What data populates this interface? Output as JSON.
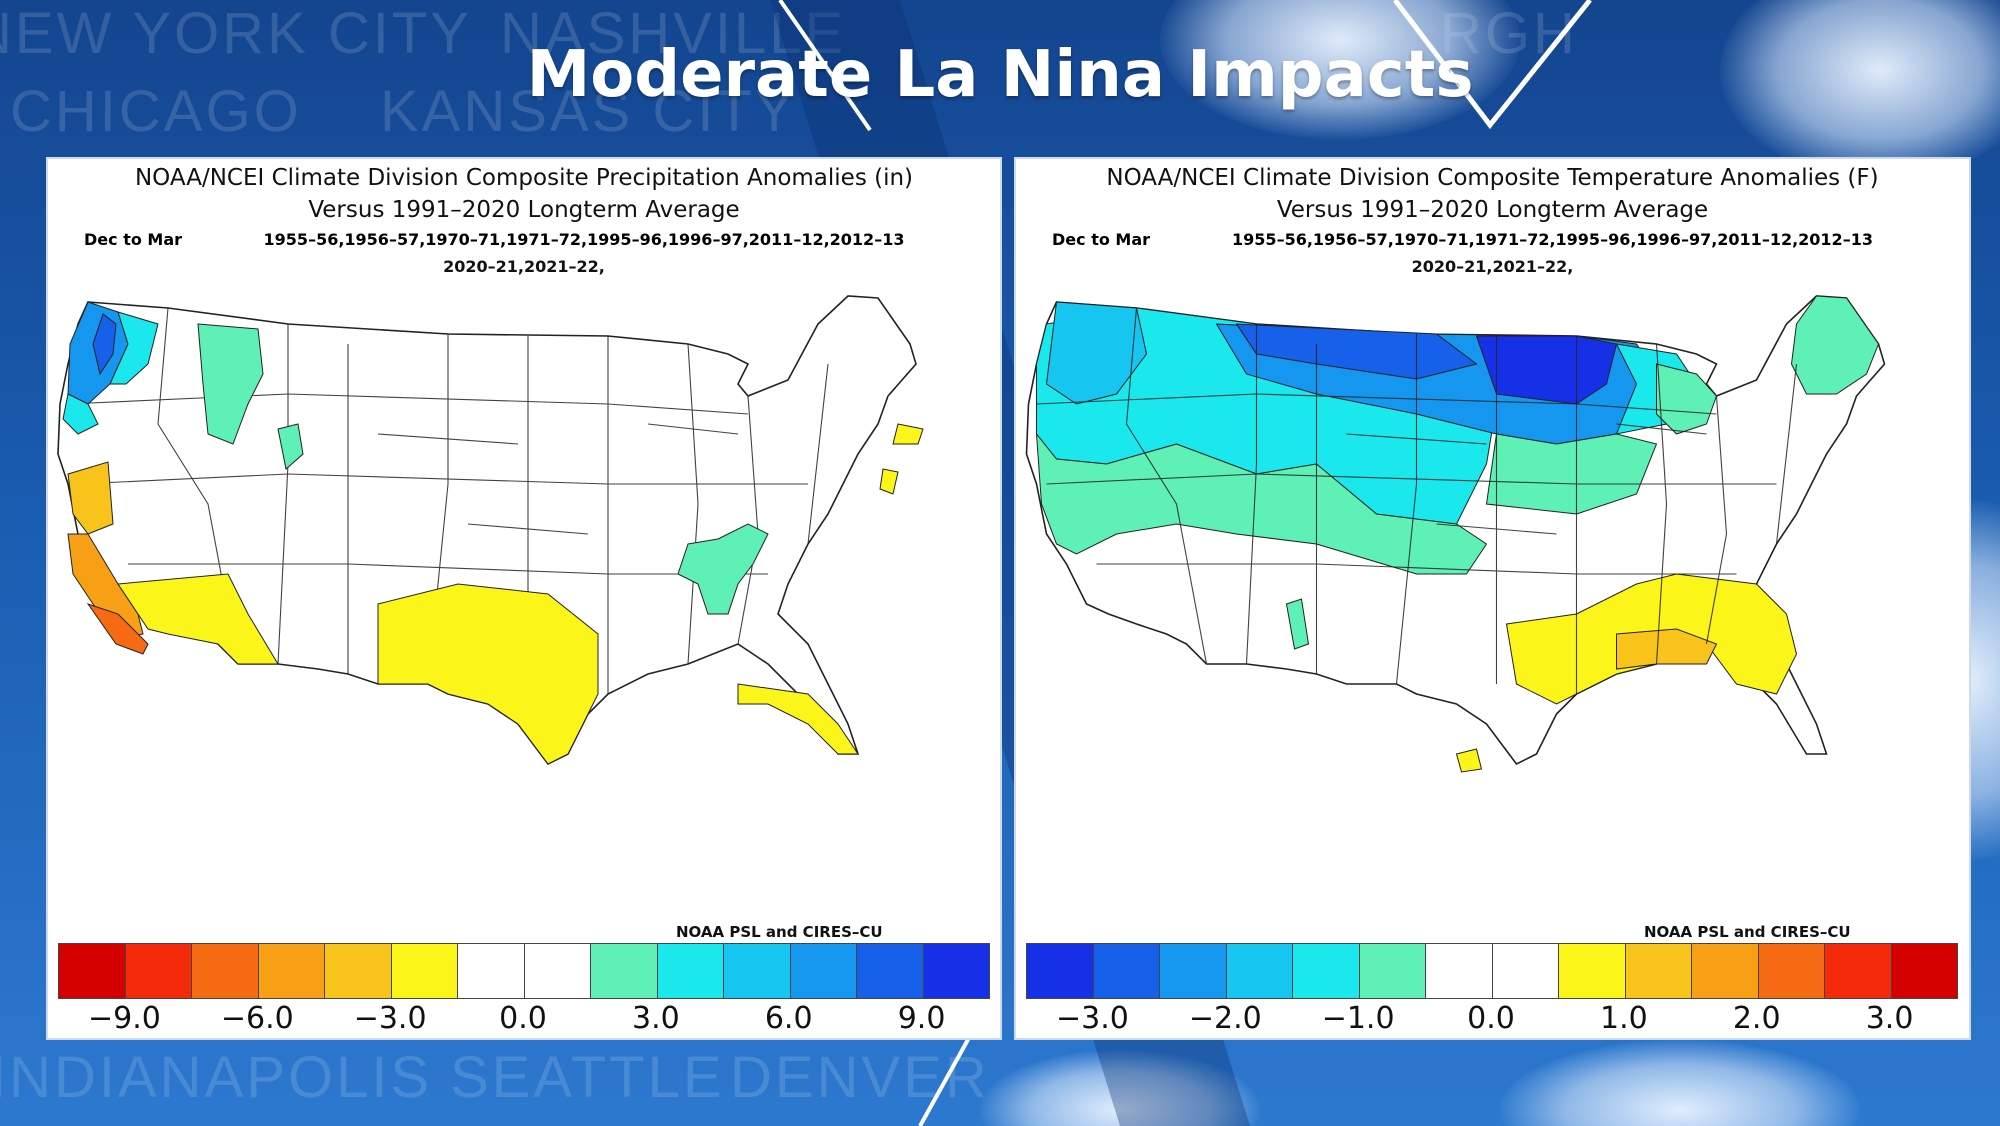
{
  "slide": {
    "title": "Moderate La Nina Impacts",
    "background_cities": [
      "NEW YORK CITY",
      "NASHVILLE",
      "CHICAGO",
      "KANSAS CITY",
      "INDIANAPOLIS",
      "SEATTLE",
      "DENVER",
      "RGH"
    ]
  },
  "maps": [
    {
      "title_line1": "NOAA/NCEI Climate Division Composite Precipitation Anomalies (in)",
      "title_line2": "Versus 1991–2020 Longterm Average",
      "period_label": "Dec to Mar",
      "years_line1": "1955–56,1956–57,1970–71,1971–72,1995–96,1996–97,2011–12,2012–13",
      "years_line2": "2020–21,2021–22,",
      "credit": "NOAA PSL and CIRES–CU",
      "scale_colors": [
        "#d40000",
        "#f52a0a",
        "#f56a12",
        "#f7a016",
        "#f8c41c",
        "#fcf51a",
        "#ffffff",
        "#ffffff",
        "#5ef0b4",
        "#1be8ec",
        "#16c6f0",
        "#1597f0",
        "#1760ea",
        "#1630e8"
      ],
      "tick_labels": [
        "−9.0",
        "−6.0",
        "−3.0",
        "0.0",
        "3.0",
        "6.0",
        "9.0"
      ]
    },
    {
      "title_line1": "NOAA/NCEI Climate Division Composite Temperature Anomalies (F)",
      "title_line2": "Versus 1991–2020 Longterm Average",
      "period_label": "Dec to Mar",
      "years_line1": "1955–56,1956–57,1970–71,1971–72,1995–96,1996–97,2011–12,2012–13",
      "years_line2": "2020–21,2021–22,",
      "credit": "NOAA PSL and CIRES–CU",
      "scale_colors": [
        "#1630e8",
        "#1760ea",
        "#1597f0",
        "#16c6f0",
        "#1be8ec",
        "#5ef0b4",
        "#ffffff",
        "#ffffff",
        "#fcf51a",
        "#f8c41c",
        "#f7a016",
        "#f56a12",
        "#f52a0a",
        "#d40000"
      ],
      "tick_labels": [
        "−3.0",
        "−2.0",
        "−1.0",
        "0.0",
        "1.0",
        "2.0",
        "3.0"
      ]
    }
  ]
}
